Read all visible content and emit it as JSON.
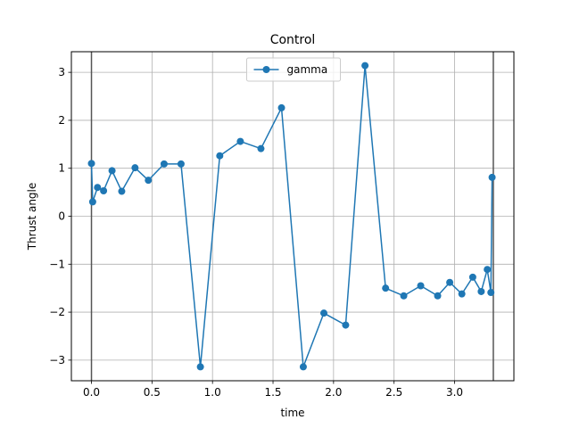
{
  "chart_data": {
    "type": "line",
    "title": "Control",
    "xlabel": "time",
    "ylabel": "Thrust angle",
    "xlim": [
      -0.166,
      3.49
    ],
    "ylim": [
      -3.43,
      3.43
    ],
    "xticks": [
      0.0,
      0.5,
      1.0,
      1.5,
      2.0,
      2.5,
      3.0
    ],
    "xtick_labels": [
      "0.0",
      "0.5",
      "1.0",
      "1.5",
      "2.0",
      "2.5",
      "3.0"
    ],
    "yticks": [
      -3,
      -2,
      -1,
      0,
      1,
      2,
      3
    ],
    "ytick_labels": [
      "−3",
      "−2",
      "−1",
      "0",
      "1",
      "2",
      "3"
    ],
    "grid": true,
    "legend_position": "upper-center",
    "vlines": [
      0.0,
      3.32
    ],
    "series": [
      {
        "name": "gamma",
        "color": "#1f77b4",
        "marker": "circle",
        "x": [
          0.0,
          0.01,
          0.05,
          0.1,
          0.17,
          0.25,
          0.36,
          0.47,
          0.6,
          0.74,
          0.9,
          1.06,
          1.23,
          1.4,
          1.57,
          1.75,
          1.92,
          2.1,
          2.26,
          2.43,
          2.58,
          2.72,
          2.86,
          2.96,
          3.06,
          3.15,
          3.22,
          3.27,
          3.3,
          3.31
        ],
        "y": [
          1.1,
          0.3,
          0.6,
          0.53,
          0.95,
          0.52,
          1.01,
          0.75,
          1.09,
          1.09,
          -3.14,
          1.26,
          1.56,
          1.41,
          2.26,
          -3.14,
          -2.02,
          -2.27,
          3.14,
          -1.5,
          -1.66,
          -1.45,
          -1.66,
          -1.38,
          -1.62,
          -1.27,
          -1.57,
          -1.11,
          -1.59,
          0.81
        ]
      }
    ]
  }
}
